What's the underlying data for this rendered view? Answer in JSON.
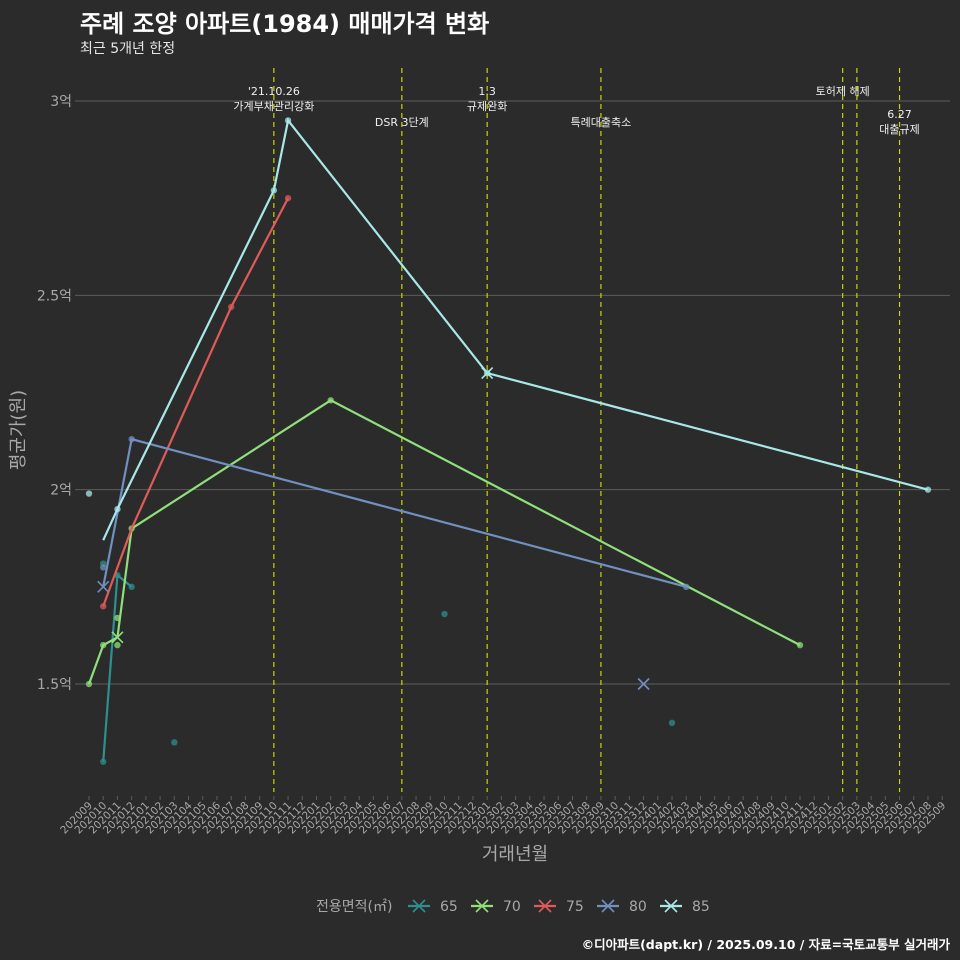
{
  "title": "주례 조양 아파트(1984) 매매가격 변화",
  "subtitle": "최근 5개년 한정",
  "caption": "©디아파트(dapt.kr) / 2025.09.10 / 자료=국토교통부 실거래가",
  "colors": {
    "background": "#2b2b2b",
    "grid": "#5c5c5c",
    "event_line": "#c8d400",
    "axis_text": "#a8a8a8",
    "event_text": "#f0f0f0"
  },
  "chart_data": {
    "type": "line",
    "xlabel": "거래년월",
    "ylabel": "평균가(원)",
    "y_unit": "억원",
    "ylim": [
      1.2,
      3.12
    ],
    "y_ticks": [
      1.5,
      2,
      2.5,
      3
    ],
    "y_tick_labels": [
      "1.5억",
      "2억",
      "2.5억",
      "3억"
    ],
    "x_categories": [
      "202009",
      "202010",
      "202011",
      "202012",
      "202101",
      "202102",
      "202103",
      "202104",
      "202105",
      "202106",
      "202107",
      "202108",
      "202109",
      "202110",
      "202111",
      "202112",
      "202201",
      "202202",
      "202203",
      "202204",
      "202205",
      "202206",
      "202207",
      "202208",
      "202209",
      "202210",
      "202211",
      "202212",
      "202301",
      "202302",
      "202303",
      "202304",
      "202305",
      "202306",
      "202307",
      "202308",
      "202309",
      "202310",
      "202311",
      "202312",
      "202401",
      "202402",
      "202403",
      "202404",
      "202405",
      "202406",
      "202407",
      "202408",
      "202409",
      "202410",
      "202411",
      "202412",
      "202501",
      "202502",
      "202503",
      "202504",
      "202505",
      "202506",
      "202507",
      "202508",
      "202509"
    ],
    "legend_title": "전용면적(㎡)",
    "legend_position": "bottom",
    "events": [
      {
        "x": "202110",
        "label": "'21.10.26\n가계부채관리강화",
        "row": 0
      },
      {
        "x": "202207",
        "label": "DSR 3단계",
        "row": 1
      },
      {
        "x": "202301",
        "label": "1.3\n규제완화",
        "row": 0
      },
      {
        "x": "202309",
        "label": "특례대출축소",
        "row": 1
      },
      {
        "x": "202502",
        "label": "토허제 해제",
        "row": 0
      },
      {
        "x": "202503",
        "label": "",
        "row": 0
      },
      {
        "x": "202506",
        "label": "6.27\n대출규제",
        "row": 1
      }
    ],
    "series": [
      {
        "name": "65",
        "color": "#2f8f8f",
        "points": [
          [
            "202010",
            1.3
          ],
          [
            "202010",
            1.81
          ],
          [
            "202011",
            1.78
          ],
          [
            "202012",
            1.75
          ],
          [
            "202103",
            1.35
          ],
          [
            "202210",
            1.68
          ],
          [
            "202402",
            1.4
          ]
        ],
        "line": [
          [
            "202010",
            1.3
          ],
          [
            "202011",
            1.78
          ],
          [
            "202012",
            1.75
          ]
        ],
        "cross": []
      },
      {
        "name": "70",
        "color": "#8fe07a",
        "points": [
          [
            "202009",
            1.5
          ],
          [
            "202010",
            1.6
          ],
          [
            "202011",
            1.6
          ],
          [
            "202011",
            1.67
          ],
          [
            "202012",
            1.9
          ],
          [
            "202202",
            2.23
          ],
          [
            "202411",
            1.6
          ]
        ],
        "line": [
          [
            "202009",
            1.5
          ],
          [
            "202010",
            1.6
          ],
          [
            "202011",
            1.62
          ],
          [
            "202012",
            1.9
          ],
          [
            "202202",
            2.23
          ],
          [
            "202411",
            1.6
          ]
        ],
        "cross": [
          [
            "202011",
            1.62
          ]
        ]
      },
      {
        "name": "75",
        "color": "#e05a5a",
        "points": [
          [
            "202010",
            1.7
          ],
          [
            "202107",
            2.47
          ],
          [
            "202111",
            2.75
          ]
        ],
        "line": [
          [
            "202010",
            1.7
          ],
          [
            "202012",
            1.9
          ],
          [
            "202107",
            2.47
          ],
          [
            "202111",
            2.75
          ]
        ],
        "cross": []
      },
      {
        "name": "80",
        "color": "#7090c0",
        "points": [
          [
            "202010",
            1.8
          ],
          [
            "202012",
            2.13
          ],
          [
            "202403",
            1.75
          ]
        ],
        "line": [
          [
            "202010",
            1.75
          ],
          [
            "202012",
            2.13
          ],
          [
            "202403",
            1.75
          ]
        ],
        "cross": [
          [
            "202010",
            1.75
          ],
          [
            "202312",
            1.5
          ]
        ]
      },
      {
        "name": "85",
        "color": "#a8e8e8",
        "points": [
          [
            "202009",
            1.99
          ],
          [
            "202011",
            1.95
          ],
          [
            "202110",
            2.77
          ],
          [
            "202111",
            2.95
          ],
          [
            "202301",
            2.3
          ],
          [
            "202508",
            2.0
          ]
        ],
        "line": [
          [
            "202010",
            1.87
          ],
          [
            "202011",
            1.95
          ],
          [
            "202110",
            2.77
          ],
          [
            "202111",
            2.95
          ],
          [
            "202301",
            2.3
          ],
          [
            "202508",
            2.0
          ]
        ],
        "cross": [
          [
            "202301",
            2.3
          ]
        ]
      }
    ]
  }
}
